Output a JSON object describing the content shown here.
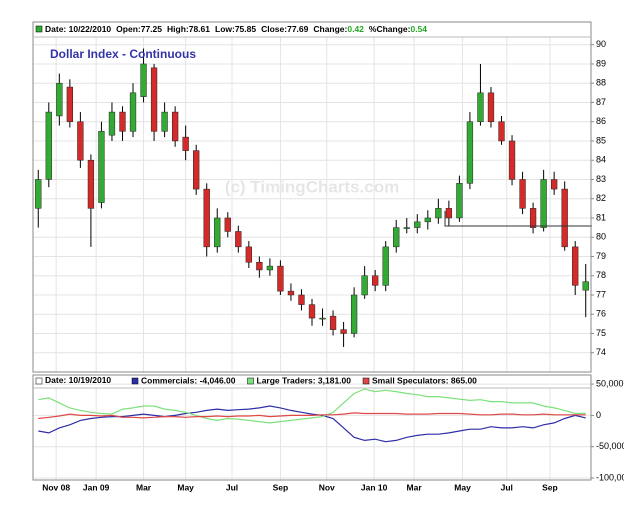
{
  "chart_data": [
    {
      "type": "candlestick",
      "title": "Dollar Index - Continuous",
      "watermark": "(c) TimingCharts.com",
      "header": {
        "date": "Date: 10/22/2010",
        "open": "Open:77.25",
        "high": "High:78.61",
        "low": "Low:75.85",
        "close": "Close:77.69",
        "change_label": "Change:",
        "change_value": "0.42",
        "pct_label": "%Change:",
        "pct_value": "0.54"
      },
      "categories": [
        null,
        null,
        null,
        null,
        null,
        null,
        null,
        null,
        null,
        null,
        null,
        null,
        null,
        null,
        null,
        null,
        null,
        null,
        null,
        null,
        null,
        null,
        null,
        null,
        null,
        null,
        null,
        null,
        null,
        null,
        null,
        null,
        null,
        null,
        null,
        null,
        null,
        null,
        null,
        null,
        null,
        null,
        null,
        null,
        null,
        null,
        null,
        null,
        null,
        null,
        null,
        null,
        null
      ],
      "open": [
        81.5,
        83.0,
        86.3,
        87.8,
        86.0,
        84.0,
        81.8,
        85.3,
        86.5,
        85.5,
        87.3,
        88.8,
        85.5,
        86.5,
        85.2,
        84.5,
        82.5,
        79.5,
        81.0,
        80.3,
        79.5,
        78.7,
        78.3,
        78.5,
        77.2,
        77.0,
        76.5,
        75.8,
        75.9,
        75.2,
        75.0,
        77.0,
        78.0,
        77.5,
        79.5,
        80.5,
        80.5,
        80.8,
        81.0,
        81.5,
        81.0,
        82.8,
        86.0,
        87.5,
        86.0,
        85.0,
        83.0,
        81.5,
        80.5,
        83.0,
        82.5,
        79.5,
        77.25
      ],
      "high": [
        83.5,
        87.0,
        88.5,
        88.2,
        86.5,
        84.3,
        86.0,
        87.0,
        86.8,
        88.0,
        89.8,
        89.0,
        87.0,
        86.8,
        85.8,
        84.8,
        82.8,
        81.5,
        81.3,
        80.6,
        79.8,
        79.0,
        78.9,
        78.8,
        77.6,
        77.3,
        76.8,
        76.3,
        76.2,
        75.6,
        77.4,
        78.5,
        78.3,
        79.8,
        80.9,
        81.0,
        81.2,
        81.4,
        82.0,
        81.9,
        83.2,
        86.5,
        89.0,
        87.8,
        86.3,
        85.3,
        83.4,
        81.8,
        83.5,
        83.4,
        82.9,
        79.8,
        78.61
      ],
      "low": [
        80.5,
        82.6,
        85.8,
        85.7,
        83.6,
        79.5,
        81.5,
        85.0,
        85.0,
        85.2,
        87.0,
        85.0,
        85.2,
        84.7,
        84.0,
        82.2,
        79.0,
        79.2,
        80.0,
        79.2,
        78.4,
        77.9,
        78.0,
        77.0,
        76.7,
        76.2,
        75.4,
        75.4,
        74.9,
        74.3,
        74.8,
        76.8,
        77.2,
        77.2,
        79.2,
        80.2,
        80.2,
        80.4,
        80.7,
        80.6,
        80.8,
        82.5,
        85.8,
        85.7,
        84.8,
        82.7,
        81.2,
        80.2,
        80.3,
        82.2,
        79.3,
        77.0,
        75.85
      ],
      "close": [
        83.0,
        86.5,
        88.0,
        86.0,
        84.0,
        81.5,
        85.5,
        86.5,
        85.5,
        87.5,
        89.0,
        85.5,
        86.5,
        85.0,
        84.5,
        82.5,
        79.5,
        81.0,
        80.3,
        79.5,
        78.7,
        78.3,
        78.5,
        77.2,
        77.0,
        76.5,
        75.8,
        75.8,
        75.2,
        75.0,
        77.0,
        78.0,
        77.5,
        79.5,
        80.5,
        80.5,
        80.8,
        81.0,
        81.5,
        81.0,
        82.8,
        86.0,
        87.5,
        86.0,
        85.0,
        83.0,
        81.5,
        80.5,
        83.0,
        82.5,
        79.5,
        77.5,
        77.69
      ],
      "up_color": "#33aa33",
      "down_color": "#d42a2a",
      "xlim": [
        -0.5,
        52.5
      ],
      "ylim": [
        73,
        90.4
      ],
      "yticks": [
        74,
        75,
        76,
        77,
        78,
        79,
        80,
        81,
        82,
        83,
        84,
        85,
        86,
        87,
        88,
        89,
        90
      ],
      "grid": true
    },
    {
      "type": "line",
      "header": {
        "date": "Date: 10/19/2010"
      },
      "categories": [
        null,
        null,
        null,
        null,
        null,
        null,
        null,
        null,
        null,
        null,
        null,
        null,
        null,
        null,
        null,
        null,
        null,
        null,
        null,
        null,
        null,
        null,
        null,
        null,
        null,
        null,
        null,
        null,
        null,
        null,
        null,
        null,
        null,
        null,
        null,
        null,
        null,
        null,
        null,
        null,
        null,
        null,
        null,
        null,
        null,
        null,
        null,
        null,
        null,
        null,
        null,
        null,
        null
      ],
      "series": [
        {
          "name": "Commercials: -4,046.00",
          "color": "#2e2ea8",
          "values": [
            -25000,
            -28000,
            -20000,
            -15000,
            -8000,
            -5000,
            -3000,
            -2000,
            -2000,
            0,
            2000,
            0,
            -2000,
            0,
            3000,
            5000,
            8000,
            10000,
            8000,
            9000,
            10000,
            12000,
            15000,
            12000,
            8000,
            5000,
            2000,
            0,
            -5000,
            -20000,
            -35000,
            -40000,
            -38000,
            -42000,
            -40000,
            -35000,
            -32000,
            -30000,
            -30000,
            -28000,
            -25000,
            -22000,
            -22000,
            -18000,
            -20000,
            -20000,
            -18000,
            -20000,
            -15000,
            -12000,
            -5000,
            0,
            -4046
          ]
        },
        {
          "name": "Large Traders: 3,181.00",
          "color": "#7de27d",
          "values": [
            25000,
            28000,
            20000,
            12000,
            8000,
            5000,
            3000,
            2000,
            10000,
            12000,
            15000,
            15000,
            10000,
            8000,
            5000,
            0,
            -5000,
            -8000,
            -5000,
            -6000,
            -8000,
            -10000,
            -12000,
            -10000,
            -8000,
            -6000,
            -4000,
            -2000,
            5000,
            20000,
            35000,
            42000,
            38000,
            40000,
            38000,
            35000,
            33000,
            30000,
            30000,
            28000,
            26000,
            24000,
            25000,
            22000,
            22000,
            20000,
            20000,
            20000,
            15000,
            12000,
            8000,
            3000,
            3181
          ]
        },
        {
          "name": "Small Speculators: 865.00",
          "color": "#e04848",
          "values": [
            -5000,
            -3000,
            -1000,
            2000,
            0,
            0,
            -1000,
            0,
            -3000,
            -3000,
            -4000,
            -3000,
            -2000,
            -2000,
            -3000,
            -2000,
            -2000,
            -1000,
            -2000,
            -1000,
            -1000,
            0,
            -2000,
            -1000,
            0,
            0,
            0,
            1000,
            1000,
            2000,
            4000,
            3000,
            3000,
            3000,
            3000,
            2000,
            2000,
            2000,
            3000,
            3000,
            3000,
            2000,
            1000,
            1000,
            2000,
            2000,
            1000,
            1000,
            2000,
            1000,
            1000,
            1000,
            865
          ]
        }
      ],
      "xlim": [
        -0.5,
        52.5
      ],
      "ylim": [
        -103200,
        64500
      ],
      "xticks": [
        {
          "value": 1.7,
          "label": "Nov 08"
        },
        {
          "value": 5.5,
          "label": "Jan 09"
        },
        {
          "value": 10,
          "label": "Mar"
        },
        {
          "value": 14,
          "label": "May"
        },
        {
          "value": 18.4,
          "label": "Jul"
        },
        {
          "value": 23,
          "label": "Sep"
        },
        {
          "value": 27.4,
          "label": "Nov"
        },
        {
          "value": 31.9,
          "label": "Jan 10"
        },
        {
          "value": 35.7,
          "label": "Mar"
        },
        {
          "value": 40.3,
          "label": "May"
        },
        {
          "value": 44.5,
          "label": "Jul"
        },
        {
          "value": 48.6,
          "label": "Sep"
        }
      ],
      "yticks": [
        {
          "value": 50000,
          "label": "50,000"
        },
        0,
        {
          "value": -50000,
          "label": "-50,000"
        },
        {
          "value": -100000,
          "label": "-100,000"
        }
      ],
      "grid": true
    }
  ]
}
